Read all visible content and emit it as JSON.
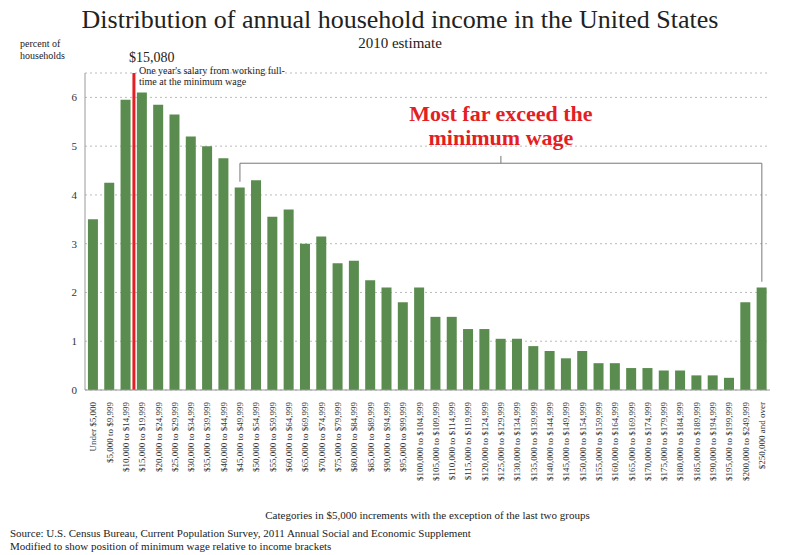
{
  "chart_data": {
    "type": "bar",
    "title": "Distribution of annual household income in the United States",
    "subtitle": "2010 estimate",
    "y_label": "percent of households",
    "x_label": "Categories in $5,000 increments with the exception of the last two groups",
    "categories": [
      "Under $5,000",
      "$5,000 to $9,999",
      "$10,000 to $14,999",
      "$15,000 to $19,999",
      "$20,000 to $24,999",
      "$25,000 to $29,999",
      "$30,000 to $34,999",
      "$35,000 to $39,999",
      "$40,000 to $44,999",
      "$45,000 to $49,999",
      "$50,000 to $54,999",
      "$55,000 to $59,999",
      "$60,000 to $64,999",
      "$65,000 to $69,999",
      "$70,000 to $74,999",
      "$75,000 to $79,999",
      "$80,000 to $84,999",
      "$85,000 to $89,999",
      "$90,000 to $94,999",
      "$95,000 to $99,999",
      "$100,000 to $104,999",
      "$105,000 to $109,999",
      "$110,000 to $114,999",
      "$115,000 to $119,999",
      "$120,000 to $124,999",
      "$125,000 to $129,999",
      "$130,000 to $134,999",
      "$135,000 to $139,999",
      "$140,000 to $144,999",
      "$145,000 to $149,999",
      "$150,000 to $154,999",
      "$155,000 to $159,999",
      "$160,000 to $164,999",
      "$165,000 to $169,999",
      "$170,000 to $174,999",
      "$175,000 to $179,999",
      "$180,000 to $184,999",
      "$185,000 to $189,999",
      "$190,000 to $194,999",
      "$195,000 to $199,999",
      "$200,000 to $249,999",
      "$250,000 and over"
    ],
    "values": [
      3.5,
      4.25,
      5.95,
      6.1,
      5.85,
      5.65,
      5.2,
      5.0,
      4.75,
      4.15,
      4.3,
      3.55,
      3.7,
      3.0,
      3.15,
      2.6,
      2.65,
      2.25,
      2.1,
      1.8,
      2.1,
      1.5,
      1.5,
      1.25,
      1.25,
      1.05,
      1.05,
      0.9,
      0.8,
      0.65,
      0.8,
      0.55,
      0.55,
      0.45,
      0.45,
      0.4,
      0.4,
      0.3,
      0.3,
      0.25,
      1.8,
      2.1
    ],
    "color": "#5a8c4f",
    "ylim": [
      0,
      6.5
    ],
    "yticks": [
      0,
      1,
      2,
      3,
      4,
      5,
      6
    ],
    "grid": true,
    "annotations": [
      {
        "type": "line",
        "category": "$15,000 to $19,999",
        "label": "$15,080",
        "text": "One year's salary from working full-time at the minimum wage",
        "color": "#e31e24"
      },
      {
        "type": "bracket",
        "from": "$45,000 to $49,999",
        "to": "$250,000 and over",
        "text": "Most far exceed the minimum wage",
        "color": "#e31e24"
      }
    ],
    "footnotes": [
      "Source: U.S. Census Bureau, Current Population Survey, 2011 Annual Social and Economic Supplement",
      "Modified to show position of minimum wage relative to income brackets"
    ]
  }
}
